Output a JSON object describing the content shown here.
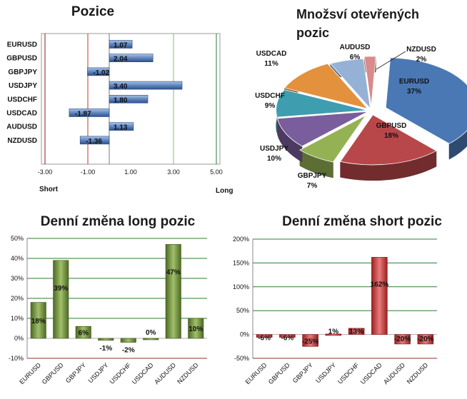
{
  "chart_data": [
    {
      "type": "bar",
      "orientation": "horizontal",
      "title": "Pozice",
      "categories": [
        "EURUSD",
        "GBPUSD",
        "GBPJPY",
        "USDJPY",
        "USDCHF",
        "USDCAD",
        "AUDUSD",
        "NZDUSD"
      ],
      "values": [
        1.07,
        2.04,
        -1.02,
        3.4,
        1.8,
        -1.87,
        1.13,
        -1.36
      ],
      "value_labels": [
        "1.07",
        "2.04",
        "-1.02",
        "3.40",
        "1.80",
        "-1.87",
        "1.13",
        "-1.36"
      ],
      "xlim": [
        -3,
        5
      ],
      "xticks": [
        "-3.00",
        "-1.00",
        "1.00",
        "3.00",
        "5.00"
      ],
      "left_label": "Short",
      "right_label": "Long",
      "reference_lines": [
        {
          "value": -3,
          "color": "#8b1a1a"
        },
        {
          "value": -1,
          "color": "#c0392b"
        },
        {
          "value": 3,
          "color": "#7fbf6a"
        },
        {
          "value": 5,
          "color": "#2e7d32"
        }
      ],
      "bar_color": "#4a6ea8"
    },
    {
      "type": "pie",
      "title": "Množsví otevřených pozic",
      "slices": [
        {
          "label": "EURUSD",
          "value": 37,
          "text": "37%",
          "color": "#4a78b4"
        },
        {
          "label": "GBPUSD",
          "value": 18,
          "text": "18%",
          "color": "#b8474a"
        },
        {
          "label": "GBPJPY",
          "value": 7,
          "text": "7%",
          "color": "#94b254"
        },
        {
          "label": "USDJPY",
          "value": 10,
          "text": "10%",
          "color": "#7a5d9c"
        },
        {
          "label": "USDCHF",
          "value": 9,
          "text": "9%",
          "color": "#3f9db0"
        },
        {
          "label": "USDCAD",
          "value": 11,
          "text": "11%",
          "color": "#e3913d"
        },
        {
          "label": "AUDUSD",
          "value": 6,
          "text": "6%",
          "color": "#96b1d6"
        },
        {
          "label": "NZDUSD",
          "value": 2,
          "text": "2%",
          "color": "#d98a8a"
        }
      ]
    },
    {
      "type": "bar",
      "title": "Denní změna long pozic",
      "categories": [
        "EURUSD",
        "GBPUSD",
        "GBPJPY",
        "USDJPY",
        "USDCHF",
        "USDCAD",
        "AUDUSD",
        "NZDUSD"
      ],
      "values": [
        18,
        39,
        6,
        -1,
        -2,
        0,
        47,
        10
      ],
      "value_labels": [
        "18%",
        "39%",
        "6%",
        "-1%",
        "-2%",
        "0%",
        "47%",
        "10%"
      ],
      "ylim": [
        -10,
        50
      ],
      "yticks": [
        "-10%",
        "0%",
        "10%",
        "20%",
        "30%",
        "40%",
        "50%"
      ],
      "grid": true,
      "bar_color": "#6f8f3a"
    },
    {
      "type": "bar",
      "title": "Denní změna short pozic",
      "categories": [
        "EURUSD",
        "GBPUSD",
        "GBPJPY",
        "USDJPY",
        "USDCHF",
        "USDCAD",
        "AUDUSD",
        "NZDUSD"
      ],
      "values": [
        -6,
        -6,
        -25,
        1,
        13,
        162,
        -20,
        -20
      ],
      "value_labels": [
        "-6%",
        "-6%",
        "-25%",
        "1%",
        "13%",
        "162%",
        "-20%",
        "-20%"
      ],
      "ylim": [
        -50,
        200
      ],
      "yticks": [
        "-50%",
        "0%",
        "50%",
        "100%",
        "150%",
        "200%"
      ],
      "grid": true,
      "bar_color": "#c83c3c"
    }
  ]
}
